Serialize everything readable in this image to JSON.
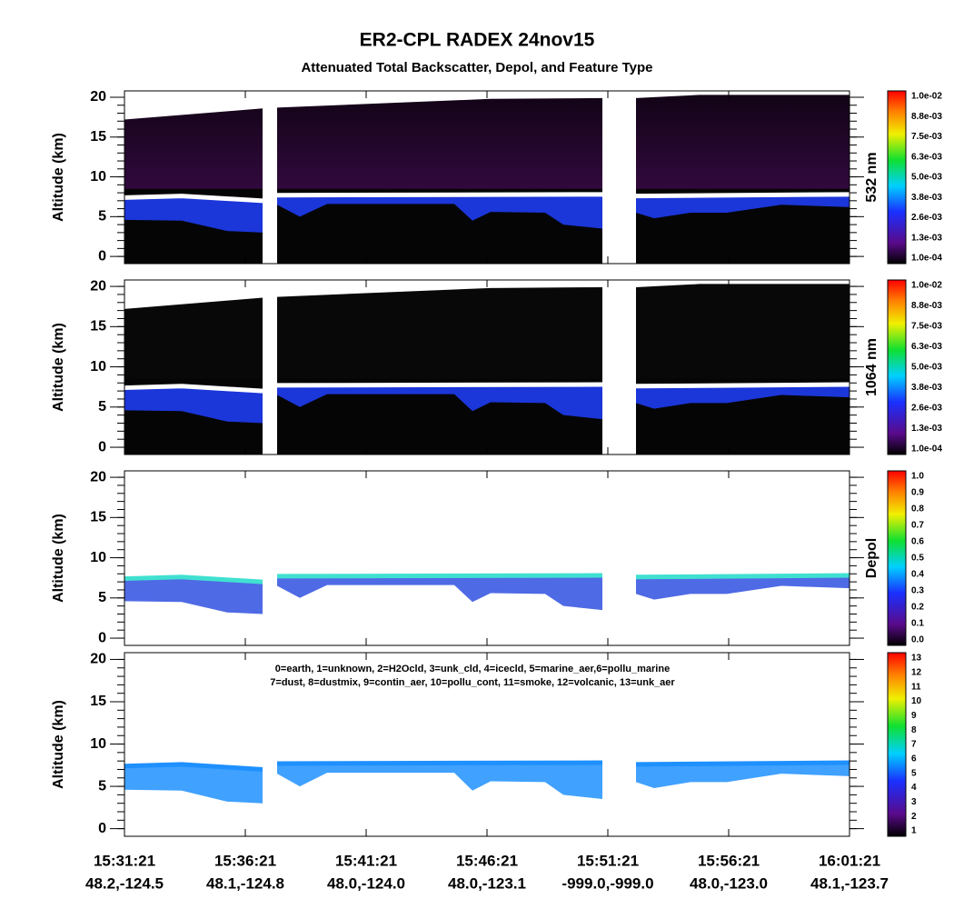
{
  "chart_data": {
    "type": "curtain",
    "title": "ER2-CPL RADEX 24nov15",
    "subtitle": "Attenuated Total Backscatter, Depol, and Feature Type",
    "x_labels": [
      "15:31:21",
      "15:36:21",
      "15:41:21",
      "15:46:21",
      "15:51:21",
      "15:56:21",
      "16:01:21"
    ],
    "x_coords": [
      "48.2,-124.5",
      "48.1,-124.8",
      "48.0,-124.0",
      "48.0,-123.1",
      "-999.0,-999.0",
      "48.0,-123.0",
      "48.1,-123.7"
    ],
    "panels": [
      {
        "ylabel": "Altitude (km)",
        "ylim": [
          -0.9,
          20.8
        ],
        "yticks": [
          0,
          5,
          10,
          15,
          20
        ],
        "colorbar_label": "532 nm",
        "colorbar_ticks": [
          "1.0e-04",
          "1.3e-03",
          "2.6e-03",
          "3.8e-03",
          "5.0e-03",
          "6.3e-03",
          "7.5e-03",
          "8.8e-03",
          "1.0e-02"
        ]
      },
      {
        "ylabel": "Altitude (km)",
        "ylim": [
          -0.9,
          20.8
        ],
        "yticks": [
          0,
          5,
          10,
          15,
          20
        ],
        "colorbar_label": "1064 nm",
        "colorbar_ticks": [
          "1.0e-04",
          "1.3e-03",
          "2.6e-03",
          "3.8e-03",
          "5.0e-03",
          "6.3e-03",
          "7.5e-03",
          "8.8e-03",
          "1.0e-02"
        ]
      },
      {
        "ylabel": "Altitude (km)",
        "ylim": [
          -0.9,
          20.8
        ],
        "yticks": [
          0,
          5,
          10,
          15,
          20
        ],
        "colorbar_label": "Depol",
        "colorbar_ticks": [
          "0.0",
          "0.1",
          "0.2",
          "0.3",
          "0.4",
          "0.5",
          "0.6",
          "0.7",
          "0.8",
          "0.9",
          "1.0"
        ]
      },
      {
        "ylabel": "Altitude (km)",
        "ylim": [
          -0.9,
          20.8
        ],
        "yticks": [
          0,
          5,
          10,
          15,
          20
        ],
        "colorbar_ticks": [
          1,
          2,
          3,
          4,
          5,
          6,
          7,
          8,
          9,
          10,
          11,
          12,
          13
        ],
        "legend": [
          "0=earth, 1=unknown, 2=H2Ocld, 3=unk_cld, 4=icecld, 5=marine_aer,6=pollu_marine",
          "7=dust, 8=dustmix, 9=contin_aer, 10=pollu_cont, 11=smoke, 12=volcanic, 13=unk_aer"
        ]
      }
    ]
  }
}
